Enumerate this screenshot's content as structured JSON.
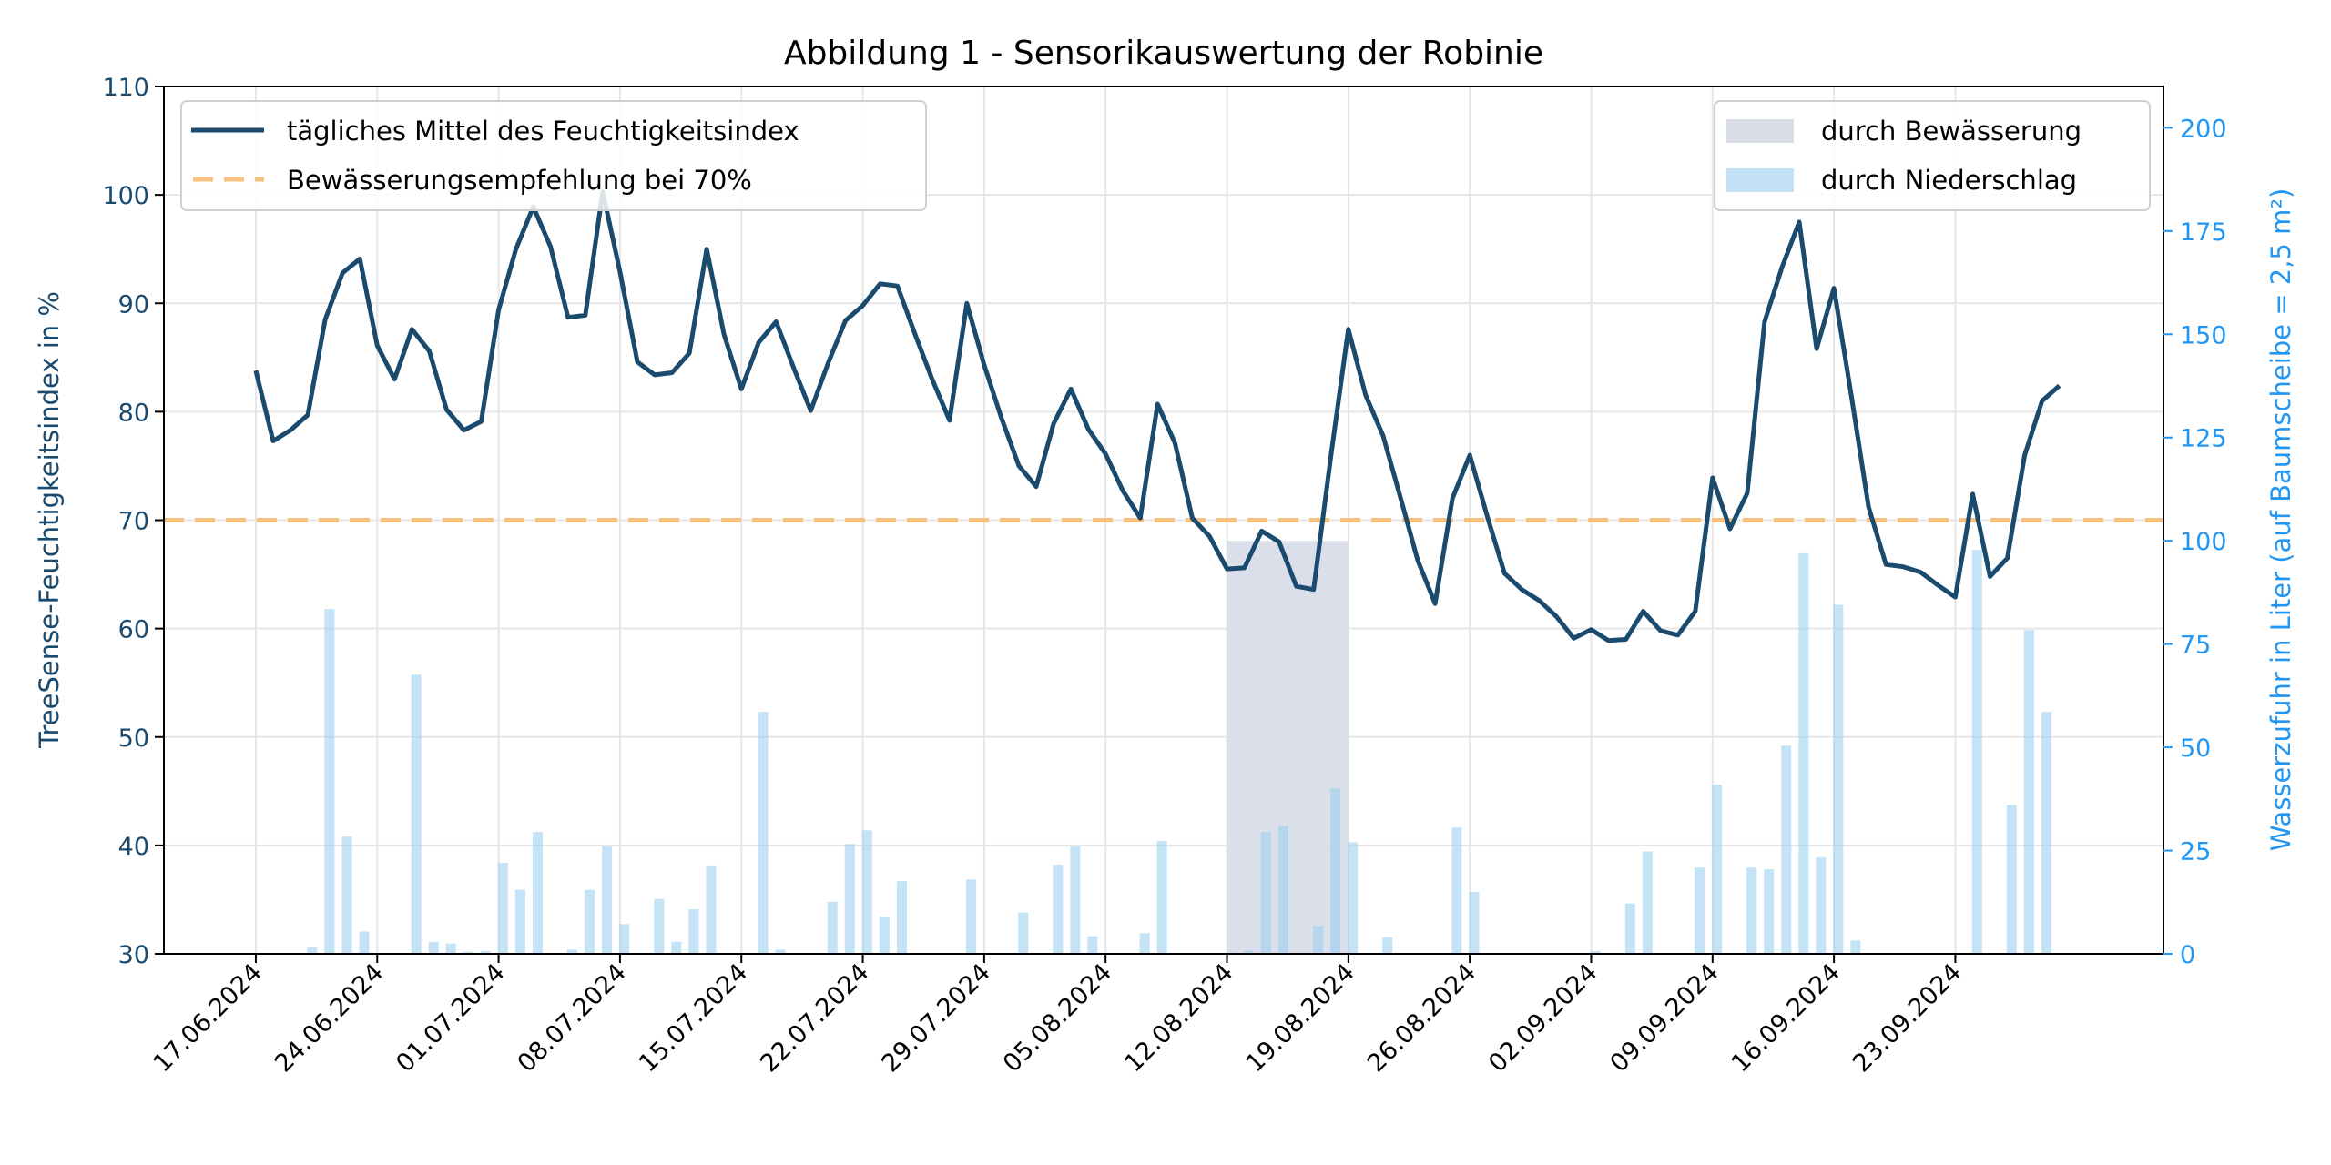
{
  "chart_data": {
    "type": "line",
    "title": "Abbildung 1 - Sensorikauswertung der Robinie",
    "ylabel": "TreeSense-Feuchtigkeitsindex in %",
    "ylabel_right": "Wasserzufuhr in Liter (auf Baumscheibe = 2,5 m²)",
    "ylim": [
      30,
      110
    ],
    "ylim_right": [
      0,
      210
    ],
    "yticks": [
      30,
      40,
      50,
      60,
      70,
      80,
      90,
      100,
      110
    ],
    "yticks_right": [
      0,
      25,
      50,
      75,
      100,
      125,
      150,
      175,
      200
    ],
    "xticks": [
      "17.06.2024",
      "24.06.2024",
      "01.07.2024",
      "08.07.2024",
      "15.07.2024",
      "22.07.2024",
      "29.07.2024",
      "05.08.2024",
      "12.08.2024",
      "19.08.2024",
      "26.08.2024",
      "02.09.2024",
      "09.09.2024",
      "16.09.2024",
      "23.09.2024"
    ],
    "x_unit": "days since 17.06.2024",
    "grid": true,
    "threshold": {
      "value": 70,
      "label": "Bewässerungsempfehlung bei 70%"
    },
    "series": [
      {
        "name": "tägliches Mittel des Feuchtigkeitsindex",
        "axis": "left",
        "type": "line",
        "values": [
          83.8,
          77.3,
          78.3,
          79.7,
          88.5,
          92.8,
          94.1,
          86.1,
          83.0,
          87.6,
          85.6,
          80.2,
          78.3,
          79.1,
          89.4,
          95.0,
          98.9,
          95.2,
          88.7,
          88.9,
          100.3,
          92.9,
          84.6,
          83.4,
          83.6,
          85.4,
          95.0,
          87.1,
          82.1,
          86.4,
          88.3,
          84.1,
          80.1,
          84.5,
          88.4,
          89.8,
          91.8,
          91.6,
          87.2,
          83.0,
          79.2,
          90.0,
          84.3,
          79.4,
          75.0,
          73.1,
          78.9,
          82.1,
          78.4,
          76.1,
          72.7,
          70.2,
          80.7,
          77.1,
          70.2,
          68.5,
          65.5,
          65.6,
          69.0,
          68.0,
          63.9,
          63.6,
          76.0,
          87.6,
          81.5,
          77.8,
          72.1,
          66.3,
          62.3,
          72.0,
          76.0,
          70.4,
          65.1,
          63.6,
          62.6,
          61.1,
          59.1,
          59.9,
          58.9,
          59.0,
          61.6,
          59.8,
          59.4,
          61.6,
          73.9,
          69.2,
          72.5,
          88.3,
          93.3,
          97.5,
          85.8,
          91.4,
          81.5,
          71.2,
          65.9,
          65.7,
          65.2,
          64.0,
          62.9,
          72.4,
          64.8,
          66.5,
          76.0,
          81.0,
          82.4
        ]
      },
      {
        "name": "durch Bewässerung",
        "axis": "right",
        "type": "span",
        "start_day": 56,
        "end_day": 63,
        "value": 100
      },
      {
        "name": "durch Niederschlag",
        "axis": "right",
        "type": "bar",
        "points": [
          [
            3,
            1.5
          ],
          [
            4,
            83.5
          ],
          [
            5,
            28.4
          ],
          [
            6,
            5.4
          ],
          [
            9,
            67.6
          ],
          [
            10,
            2.9
          ],
          [
            11,
            2.5
          ],
          [
            12,
            0.5
          ],
          [
            13,
            0.7
          ],
          [
            14,
            22
          ],
          [
            15,
            15.5
          ],
          [
            16,
            29.5
          ],
          [
            18,
            1
          ],
          [
            19,
            15.5
          ],
          [
            20,
            26
          ],
          [
            21,
            7.2
          ],
          [
            23,
            13.3
          ],
          [
            24,
            2.9
          ],
          [
            25,
            10.8
          ],
          [
            26,
            21.2
          ],
          [
            29,
            58.6
          ],
          [
            30,
            1
          ],
          [
            33,
            12.6
          ],
          [
            34,
            26.6
          ],
          [
            35,
            29.9
          ],
          [
            36,
            9
          ],
          [
            37,
            17.6
          ],
          [
            41,
            18
          ],
          [
            44,
            10
          ],
          [
            46,
            21.6
          ],
          [
            47,
            26
          ],
          [
            48,
            4.3
          ],
          [
            51,
            5
          ],
          [
            52,
            27.3
          ],
          [
            57,
            0.8
          ],
          [
            58,
            29.5
          ],
          [
            59,
            31
          ],
          [
            61,
            6.8
          ],
          [
            62,
            40
          ],
          [
            63,
            27
          ],
          [
            65,
            4
          ],
          [
            69,
            30.6
          ],
          [
            70,
            15
          ],
          [
            77,
            0.7
          ],
          [
            79,
            12.2
          ],
          [
            80,
            24.8
          ],
          [
            83,
            20.9
          ],
          [
            84,
            41
          ],
          [
            86,
            20.9
          ],
          [
            87,
            20.5
          ],
          [
            88,
            50.4
          ],
          [
            89,
            97
          ],
          [
            90,
            23.4
          ],
          [
            91,
            84.5
          ],
          [
            92,
            3.2
          ],
          [
            99,
            97.8
          ],
          [
            101,
            36
          ],
          [
            102,
            78.4
          ],
          [
            103,
            58.6
          ]
        ]
      }
    ],
    "legend_left": [
      "tägliches Mittel des Feuchtigkeitsindex",
      "Bewässerungsempfehlung bei 70%"
    ],
    "legend_right": [
      "durch Bewässerung",
      "durch Niederschlag"
    ],
    "legend_placement": [
      "top-left",
      "top-right"
    ],
    "colors": {
      "line": "#1a4a6e",
      "threshold": "#f8c17e",
      "irrigation": "#d8dde8",
      "precip": "#c4e2f7",
      "left_axis": "#1a4a6e",
      "right_axis": "#2196f3"
    }
  }
}
